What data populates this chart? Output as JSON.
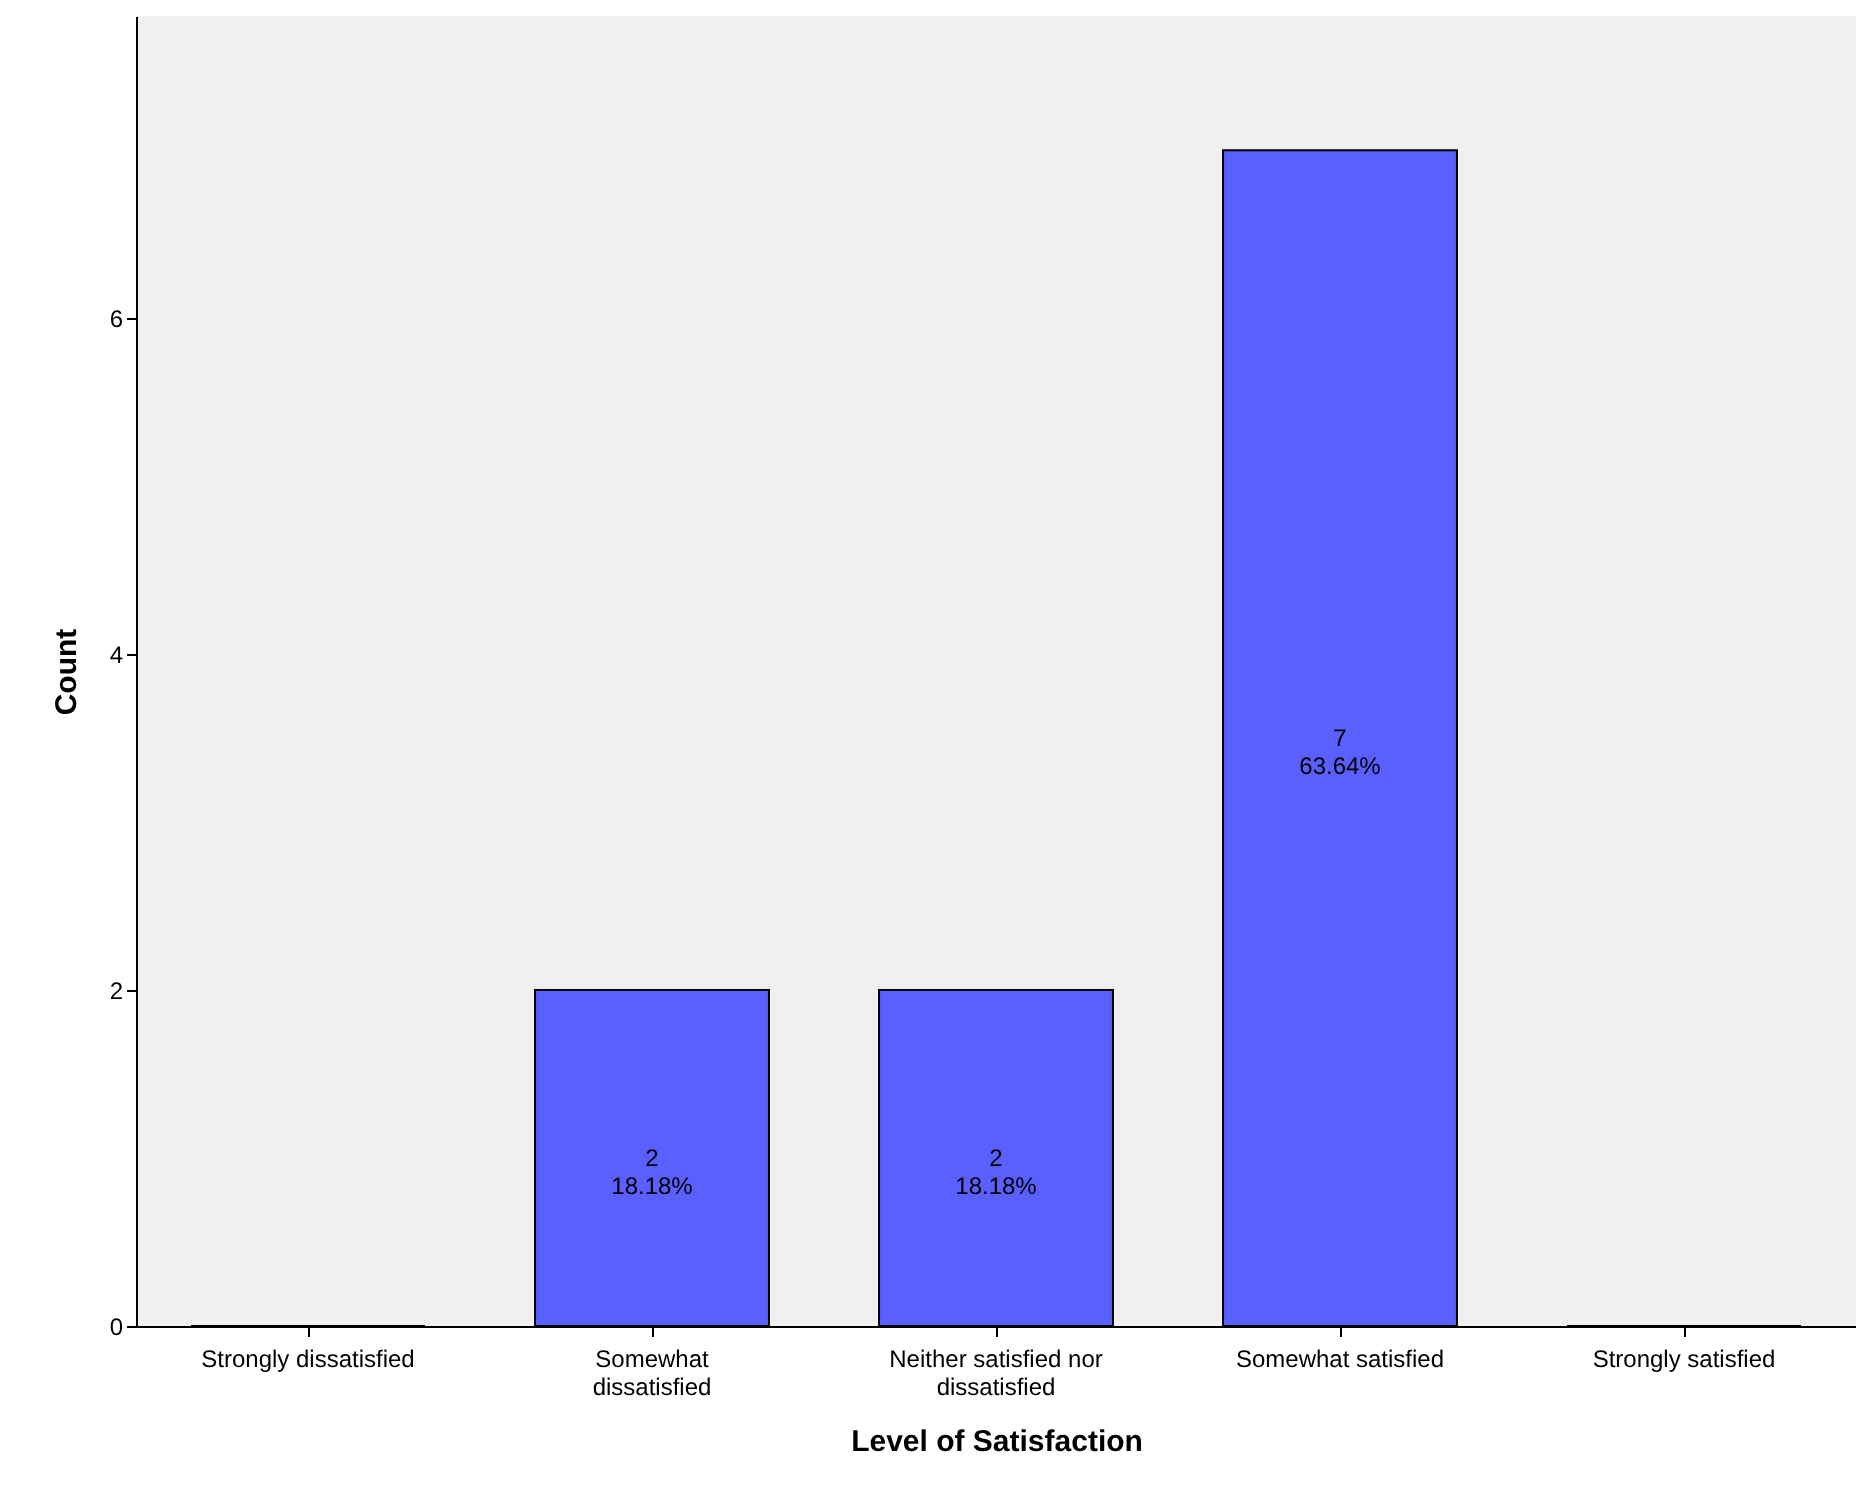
{
  "chart_data": {
    "type": "bar",
    "xlabel": "Level of Satisfaction",
    "ylabel": "Count",
    "categories": [
      "Strongly dissatisfied",
      "Somewhat\ndissatisfied",
      "Neither satisfied nor\ndissatisfied",
      "Somewhat satisfied",
      "Strongly satisfied"
    ],
    "values": [
      0,
      2,
      2,
      7,
      0
    ],
    "color": "#5a5fff",
    "value_labels": [
      null,
      "2\n18.18%",
      "2\n18.18%",
      "7\n63.64%",
      null
    ],
    "ylim": [
      0,
      7.8
    ],
    "yticks": [
      0,
      2,
      4,
      6
    ]
  }
}
